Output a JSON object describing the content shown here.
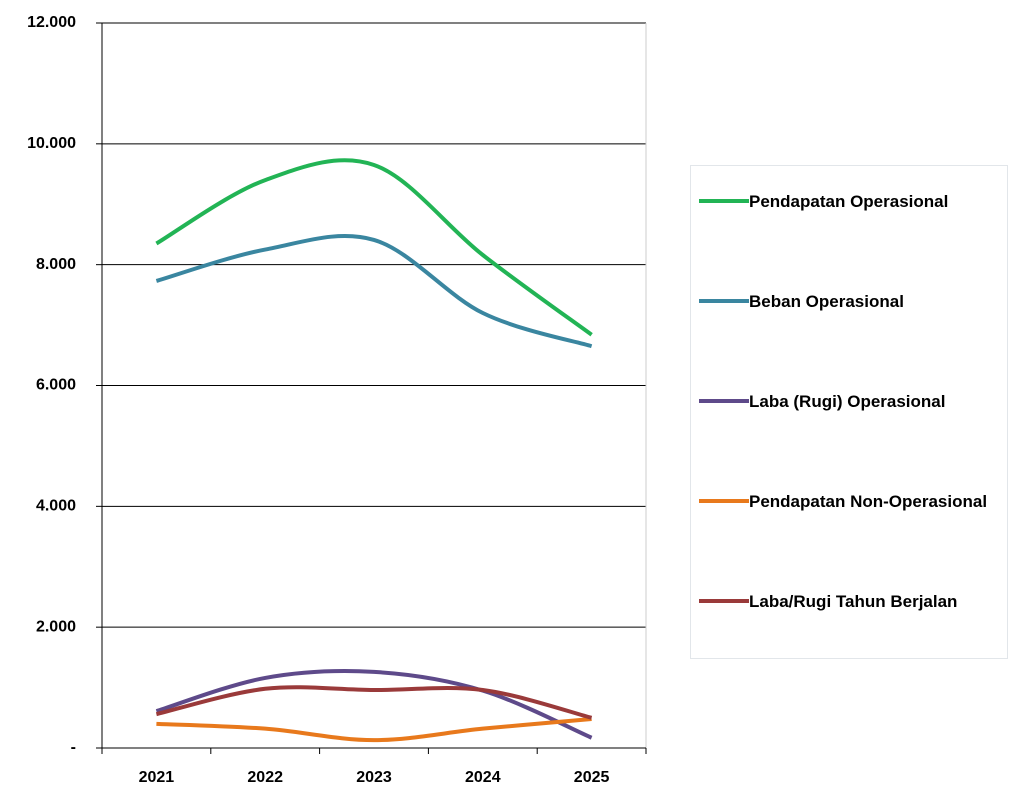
{
  "chart_data": {
    "type": "line",
    "categories": [
      "2021",
      "2022",
      "2023",
      "2024",
      "2025"
    ],
    "series": [
      {
        "name": "Pendapatan Operasional",
        "color": "#22b455",
        "values": [
          8350,
          9400,
          9650,
          8160,
          6840
        ]
      },
      {
        "name": "Beban Operasional",
        "color": "#3a86a0",
        "values": [
          7730,
          8250,
          8410,
          7200,
          6650
        ]
      },
      {
        "name": "Laba (Rugi) Operasional",
        "color": "#5e4a8a",
        "values": [
          610,
          1160,
          1260,
          950,
          170
        ]
      },
      {
        "name": "Pendapatan Non-Operasional",
        "color": "#e8791c",
        "values": [
          400,
          320,
          130,
          320,
          480
        ]
      },
      {
        "name": "Laba/Rugi Tahun Berjalan",
        "color": "#9a3a3a",
        "values": [
          560,
          980,
          960,
          960,
          500
        ]
      }
    ],
    "ylim": [
      0,
      12000
    ],
    "yticks": [
      {
        "value": 0,
        "label": "-"
      },
      {
        "value": 2000,
        "label": "2.000"
      },
      {
        "value": 4000,
        "label": "4.000"
      },
      {
        "value": 6000,
        "label": "6.000"
      },
      {
        "value": 8000,
        "label": "8.000"
      },
      {
        "value": 10000,
        "label": "10.000"
      },
      {
        "value": 12000,
        "label": "12.000"
      }
    ],
    "grid": true,
    "smooth": true,
    "legend": "right"
  }
}
